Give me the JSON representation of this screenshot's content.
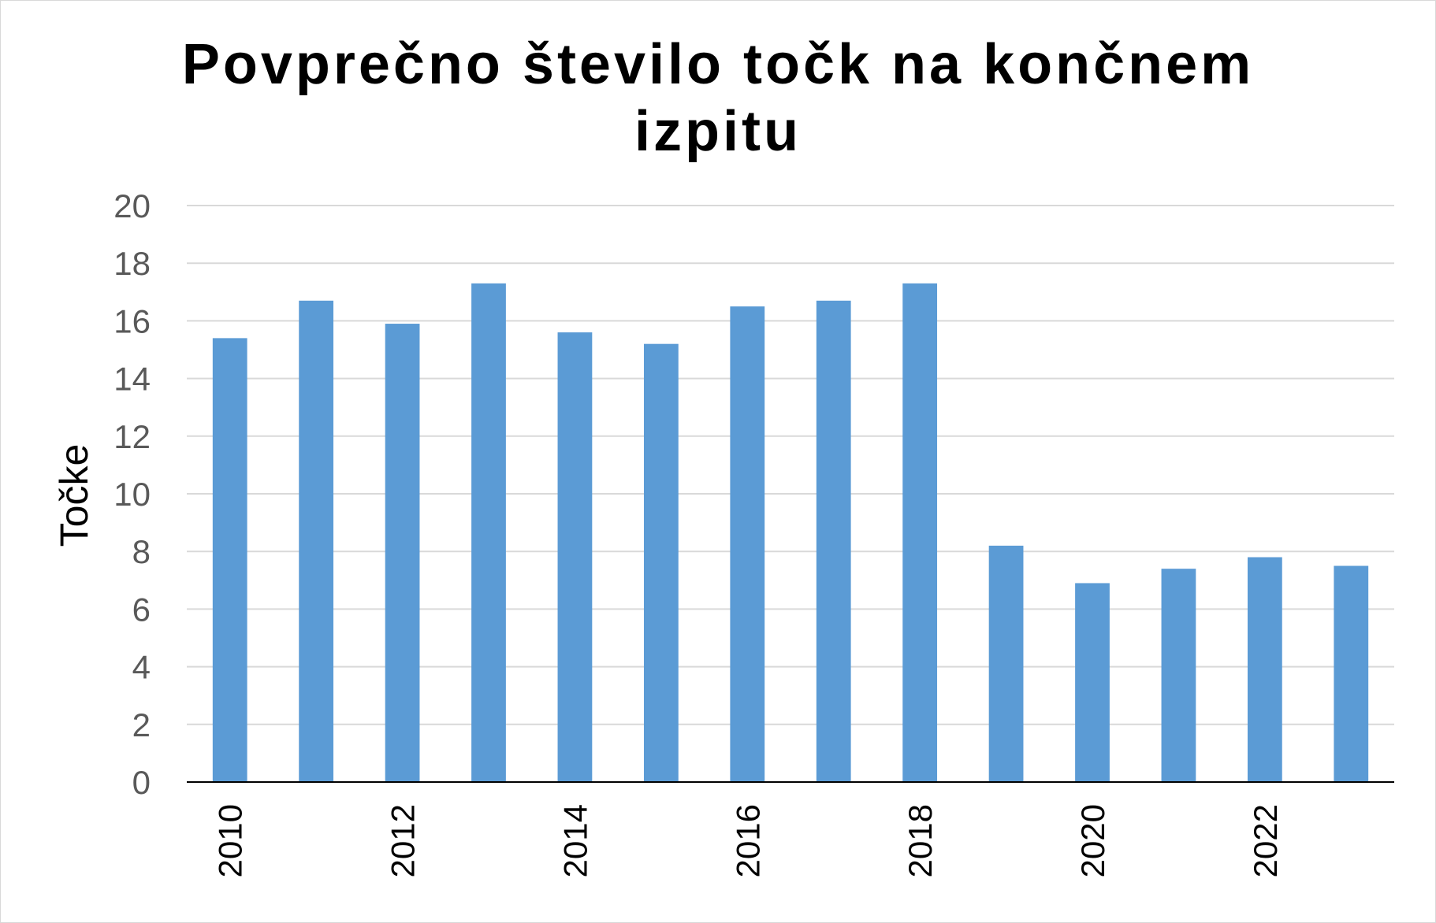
{
  "chart_data": {
    "type": "bar",
    "title_lines": [
      "Povprečno število točk na končnem",
      "izpitu"
    ],
    "ylabel": "Točke",
    "xlabel": "",
    "categories": [
      "2010",
      "2011",
      "2012",
      "2013",
      "2014",
      "2015",
      "2016",
      "2017",
      "2018",
      "2019",
      "2020",
      "2021",
      "2022",
      "2023"
    ],
    "x_tick_labels": [
      "2010",
      "",
      "2012",
      "",
      "2014",
      "",
      "2016",
      "",
      "2018",
      "",
      "2020",
      "",
      "2022",
      ""
    ],
    "values": [
      15.4,
      16.7,
      15.9,
      17.3,
      15.6,
      15.2,
      16.5,
      16.7,
      17.3,
      8.2,
      6.9,
      7.4,
      7.8,
      7.5
    ],
    "ylim": [
      0,
      20
    ],
    "yticks": [
      "0",
      "2",
      "4",
      "6",
      "8",
      "10",
      "12",
      "14",
      "16",
      "18",
      "20"
    ],
    "grid": true,
    "legend": "none",
    "colors": {
      "bar": "#5b9bd5",
      "grid": "#d9d9d9",
      "axis": "#000000"
    }
  }
}
